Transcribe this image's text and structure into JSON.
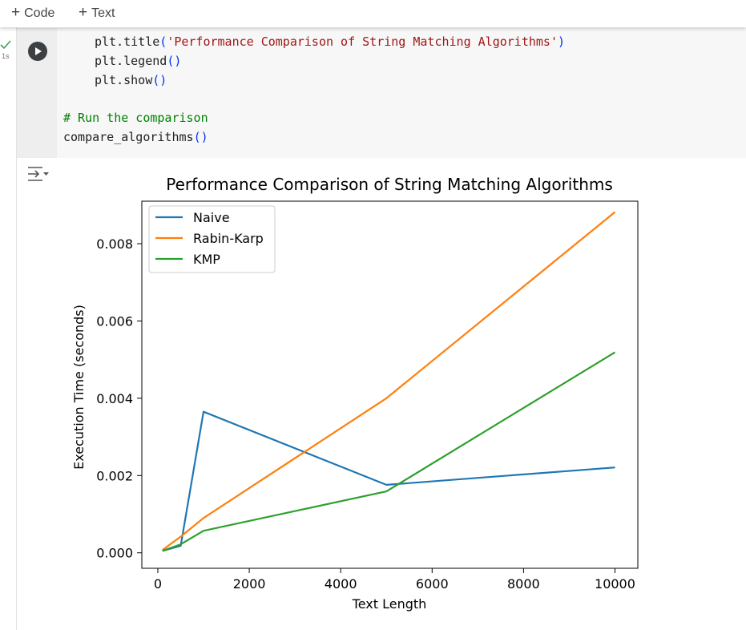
{
  "toolbar": {
    "add_code": "Code",
    "add_text": "Text"
  },
  "cell": {
    "exec_time": "1s",
    "code": {
      "line1_fn": "plt.title",
      "line1_arg": "'Performance Comparison of String Matching Algorithms'",
      "line2_fn": "plt.legend",
      "line3_fn": "plt.show",
      "comment": "# Run the comparison",
      "call": "compare_algorithms"
    }
  },
  "colors": {
    "naive": "#1f77b4",
    "rabin_karp": "#ff7f0e",
    "kmp": "#2ca02c"
  },
  "chart_data": {
    "type": "line",
    "title": "Performance Comparison of String Matching Algorithms",
    "xlabel": "Text Length",
    "ylabel": "Execution Time (seconds)",
    "xlim": [
      -350,
      10500
    ],
    "ylim": [
      -0.0004,
      0.0091
    ],
    "xticks": [
      0,
      2000,
      4000,
      6000,
      8000,
      10000
    ],
    "xtick_labels": [
      "0",
      "2000",
      "4000",
      "6000",
      "8000",
      "10000"
    ],
    "yticks": [
      0.0,
      0.002,
      0.004,
      0.006,
      0.008
    ],
    "ytick_labels": [
      "0.000",
      "0.002",
      "0.004",
      "0.006",
      "0.008"
    ],
    "legend_position": "upper-left",
    "x": [
      100,
      500,
      1000,
      5000,
      10000
    ],
    "series": [
      {
        "name": "Naive",
        "values": [
          5e-05,
          0.00018,
          0.00365,
          0.00176,
          0.00221
        ]
      },
      {
        "name": "Rabin-Karp",
        "values": [
          7e-05,
          0.00042,
          0.0009,
          0.004,
          0.00882
        ]
      },
      {
        "name": "KMP",
        "values": [
          5e-05,
          0.00022,
          0.00057,
          0.00159,
          0.00519
        ]
      }
    ]
  }
}
